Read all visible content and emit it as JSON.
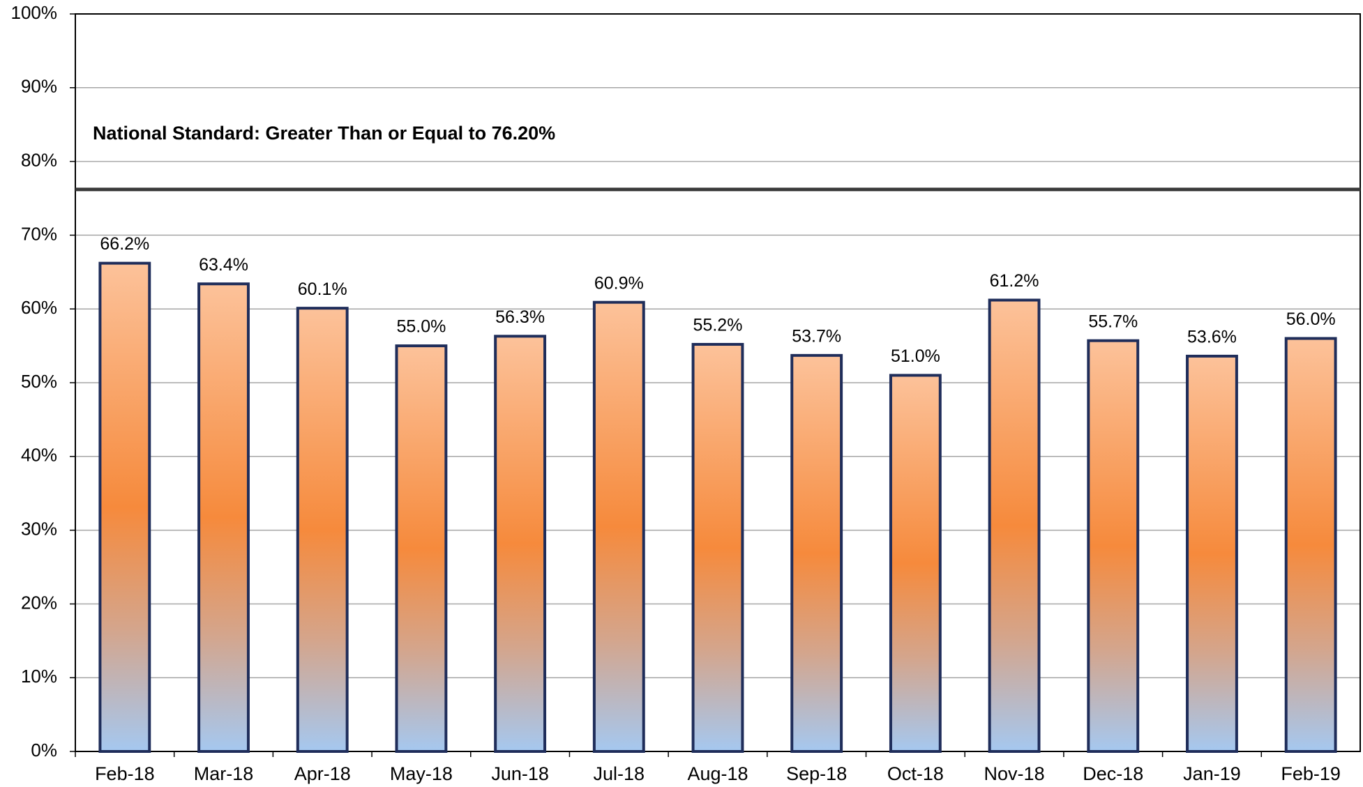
{
  "chart_data": {
    "type": "bar",
    "annotation": "National Standard: Greater Than or Equal to 76.20%",
    "reference_line": 76.2,
    "categories": [
      "Feb-18",
      "Mar-18",
      "Apr-18",
      "May-18",
      "Jun-18",
      "Jul-18",
      "Aug-18",
      "Sep-18",
      "Oct-18",
      "Nov-18",
      "Dec-18",
      "Jan-19",
      "Feb-19"
    ],
    "values": [
      66.2,
      63.4,
      60.1,
      55.0,
      56.3,
      60.9,
      55.2,
      53.7,
      51.0,
      61.2,
      55.7,
      53.6,
      56.0
    ],
    "value_labels": [
      "66.2%",
      "63.4%",
      "60.1%",
      "55.0%",
      "56.3%",
      "60.9%",
      "55.2%",
      "53.7%",
      "51.0%",
      "61.2%",
      "55.7%",
      "53.6%",
      "56.0%"
    ],
    "ylim": [
      0,
      100
    ],
    "yticks": [
      {
        "value": 0,
        "label": "0%"
      },
      {
        "value": 10,
        "label": "10%"
      },
      {
        "value": 20,
        "label": "20%"
      },
      {
        "value": 30,
        "label": "30%"
      },
      {
        "value": 40,
        "label": "40%"
      },
      {
        "value": 50,
        "label": "50%"
      },
      {
        "value": 60,
        "label": "60%"
      },
      {
        "value": 70,
        "label": "70%"
      },
      {
        "value": 80,
        "label": "80%"
      },
      {
        "value": 90,
        "label": "90%"
      },
      {
        "value": 100,
        "label": "100%"
      }
    ],
    "grid": true
  }
}
